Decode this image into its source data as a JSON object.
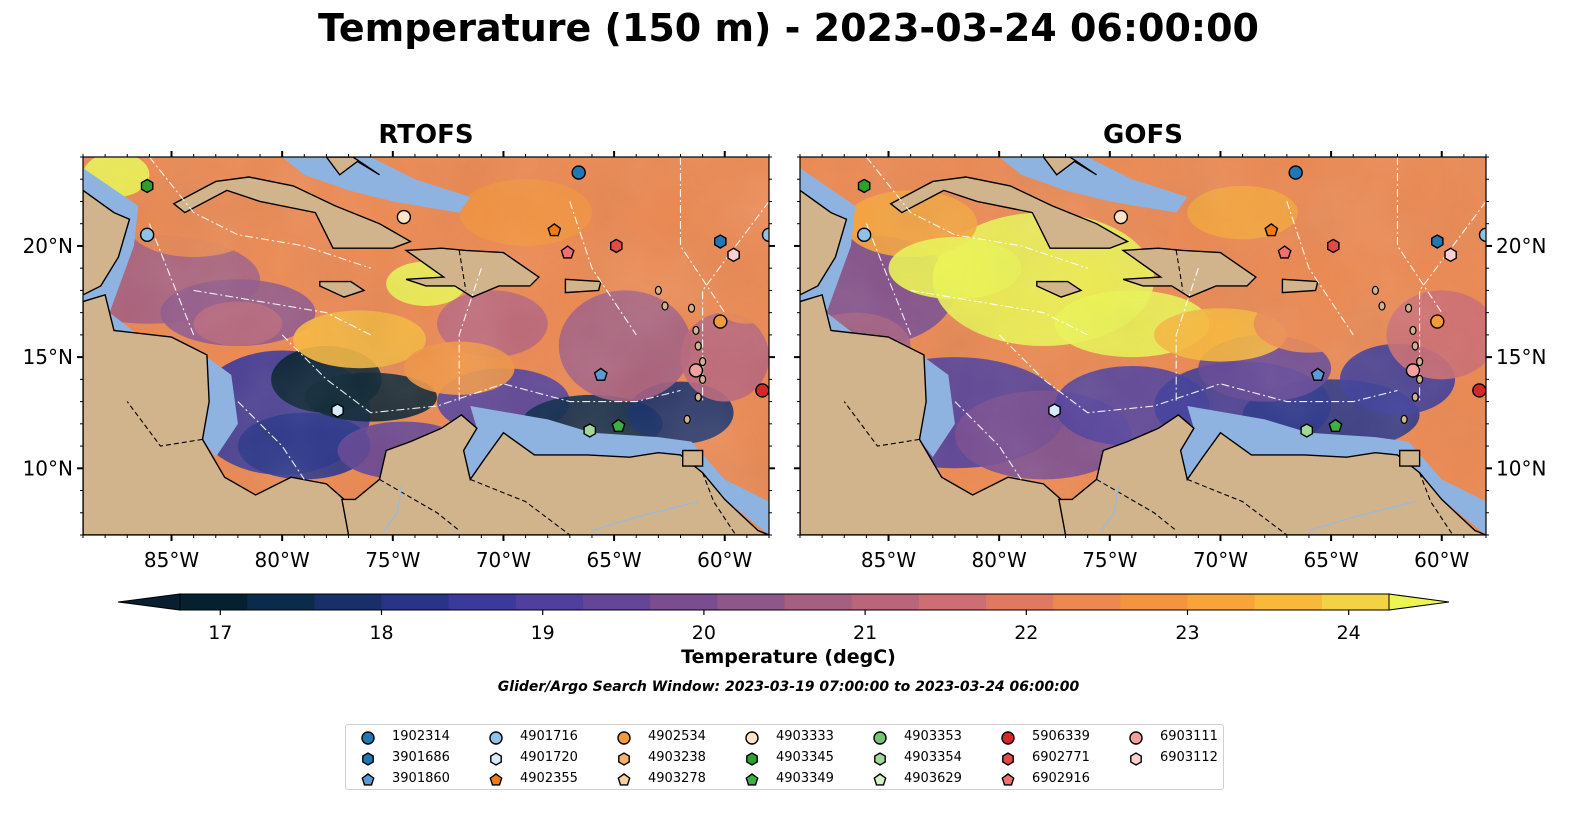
{
  "title": "Temperature (150 m) - 2023-03-24 06:00:00",
  "panels": [
    {
      "title": "RTOFS"
    },
    {
      "title": "GOFS"
    }
  ],
  "map": {
    "lon_ticks": [
      "85°W",
      "80°W",
      "75°W",
      "70°W",
      "65°W",
      "60°W"
    ],
    "lat_ticks": [
      "20°N",
      "15°N",
      "10°N"
    ],
    "extent": {
      "lon": [
        -89,
        -58
      ],
      "lat": [
        7,
        24
      ]
    },
    "land_color": "#d2b48c",
    "shelf_color": "#8fb3e0"
  },
  "colorbar": {
    "label": "Temperature (degC)",
    "ticks": [
      "17",
      "18",
      "19",
      "20",
      "21",
      "22",
      "23",
      "24"
    ],
    "range": [
      16.75,
      24.25
    ],
    "levels": [
      "#05202f",
      "#0b2b4a",
      "#17306a",
      "#283488",
      "#3b3a9a",
      "#503f9c",
      "#644596",
      "#7a4d90",
      "#8f5688",
      "#a45f81",
      "#b9667a",
      "#cd6e72",
      "#de7a62",
      "#ec8850",
      "#f39540",
      "#f7a53a",
      "#f8b83c",
      "#f3d245"
    ],
    "extend_low": "#071f30",
    "extend_high": "#ecf552"
  },
  "search_window": "Glider/Argo Search Window: 2023-03-19 07:00:00 to 2023-03-24 06:00:00",
  "legend": {
    "entries": [
      {
        "id": "1902314",
        "marker": "circle",
        "color": "#1f77b4"
      },
      {
        "id": "3901686",
        "marker": "hexagon",
        "color": "#1f77b4"
      },
      {
        "id": "3901860",
        "marker": "pentagon",
        "color": "#5b9bd5"
      },
      {
        "id": "4901716",
        "marker": "circle",
        "color": "#8ec2e8"
      },
      {
        "id": "4901720",
        "marker": "hexagon",
        "color": "#d6ecfa"
      },
      {
        "id": "4902355",
        "marker": "pentagon",
        "color": "#f07c12"
      },
      {
        "id": "4902534",
        "marker": "circle",
        "color": "#f39a3c"
      },
      {
        "id": "4903238",
        "marker": "hexagon",
        "color": "#f7b26e"
      },
      {
        "id": "4903278",
        "marker": "pentagon",
        "color": "#fbd0a0"
      },
      {
        "id": "4903333",
        "marker": "circle",
        "color": "#fde4c8"
      },
      {
        "id": "4903345",
        "marker": "hexagon",
        "color": "#2ca02c"
      },
      {
        "id": "4903349",
        "marker": "pentagon",
        "color": "#3cb043"
      },
      {
        "id": "4903353",
        "marker": "circle",
        "color": "#74c476"
      },
      {
        "id": "4903354",
        "marker": "hexagon",
        "color": "#a1d99b"
      },
      {
        "id": "4903629",
        "marker": "pentagon",
        "color": "#d4f2c8"
      },
      {
        "id": "5906339",
        "marker": "circle",
        "color": "#d62728"
      },
      {
        "id": "6902771",
        "marker": "hexagon",
        "color": "#e34a4a"
      },
      {
        "id": "6902916",
        "marker": "pentagon",
        "color": "#ee7070"
      },
      {
        "id": "6903111",
        "marker": "circle",
        "color": "#f4a0a0"
      },
      {
        "id": "6903112",
        "marker": "hexagon",
        "color": "#fcd0d0"
      }
    ]
  },
  "floats": [
    {
      "id": "1902314",
      "lon": -66.6,
      "lat": 23.3
    },
    {
      "id": "3901686",
      "lon": -60.2,
      "lat": 20.2
    },
    {
      "id": "3901860",
      "lon": -65.6,
      "lat": 14.2
    },
    {
      "id": "4901716",
      "lon": -86.1,
      "lat": 20.5
    },
    {
      "id": "4901716",
      "lon": -58.0,
      "lat": 20.5
    },
    {
      "id": "4901720",
      "lon": -77.5,
      "lat": 12.6
    },
    {
      "id": "4902355",
      "lon": -67.7,
      "lat": 20.7
    },
    {
      "id": "4902534",
      "lon": -60.2,
      "lat": 16.6
    },
    {
      "id": "4903333",
      "lon": -74.5,
      "lat": 21.3
    },
    {
      "id": "4903345",
      "lon": -86.1,
      "lat": 22.7
    },
    {
      "id": "4903349",
      "lon": -64.8,
      "lat": 11.9
    },
    {
      "id": "4903354",
      "lon": -66.1,
      "lat": 11.7
    },
    {
      "id": "5906339",
      "lon": -58.3,
      "lat": 13.5
    },
    {
      "id": "6902771",
      "lon": -64.9,
      "lat": 20.0
    },
    {
      "id": "6902916",
      "lon": -67.1,
      "lat": 19.7
    },
    {
      "id": "6903111",
      "lon": -61.3,
      "lat": 14.4
    },
    {
      "id": "6903112",
      "lon": -59.6,
      "lat": 19.6
    }
  ]
}
